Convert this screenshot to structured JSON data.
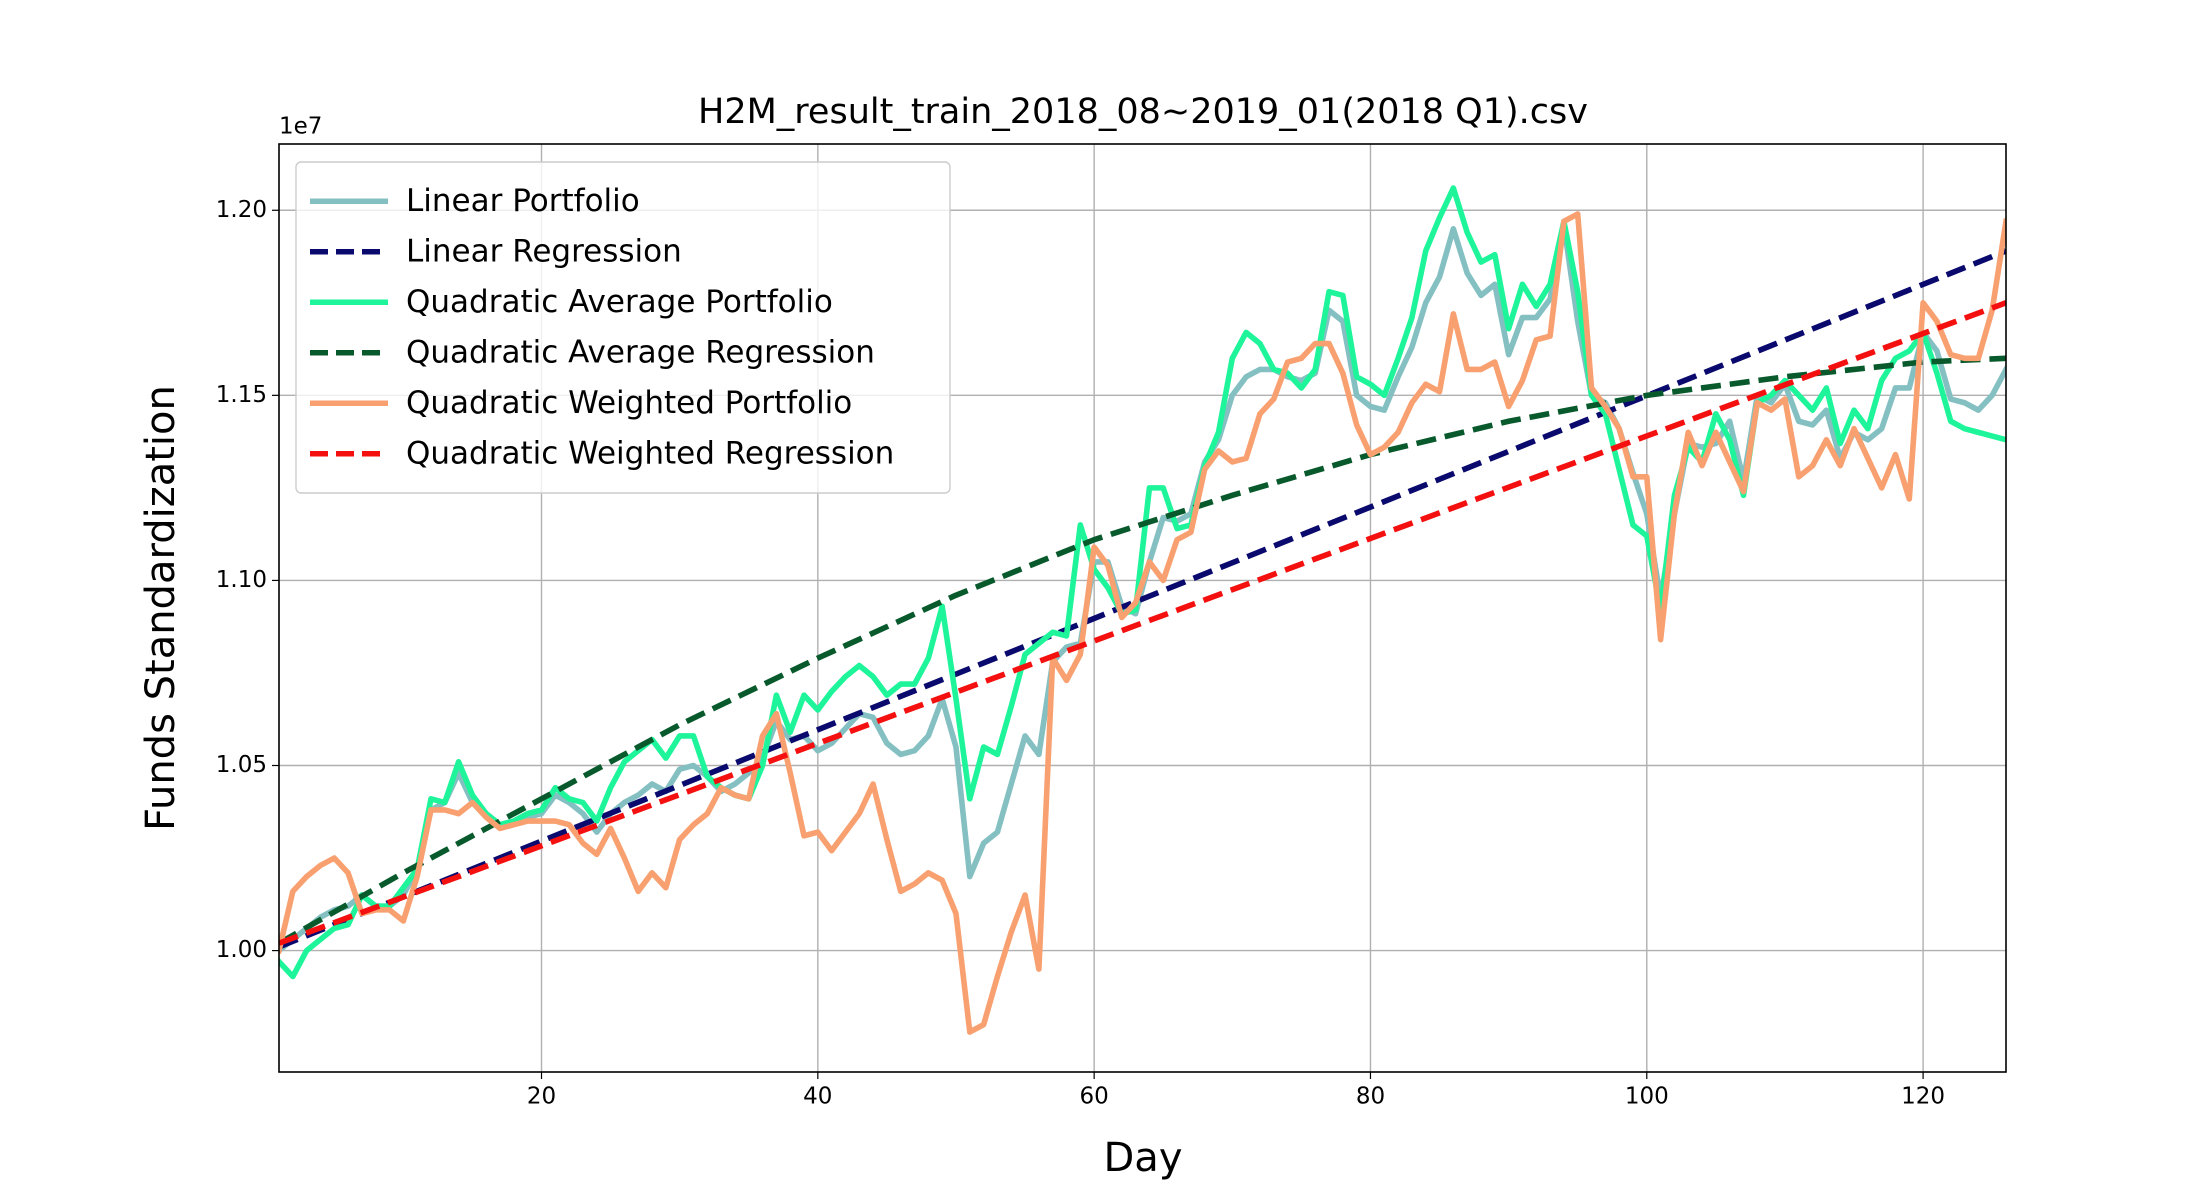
{
  "chart_data": {
    "type": "line",
    "title": "H2M_result_train_2018_08~2019_01(2018 Q1).csv",
    "xlabel": "Day",
    "ylabel": "Funds Standardization",
    "offset_text": "1e7",
    "grid": true,
    "legend": "upper left",
    "xlim": [
      1,
      126
    ],
    "ylim": [
      0.9672,
      1.2179
    ],
    "xticks": [
      20,
      40,
      60,
      80,
      100,
      120
    ],
    "yticks": [
      {
        "value": 1,
        "label": "1.00"
      },
      1.05,
      {
        "value": 1.1,
        "label": "1.10"
      },
      1.15,
      {
        "value": 1.2,
        "label": "1.20"
      }
    ],
    "x": [
      1,
      2,
      3,
      4,
      5,
      6,
      7,
      8,
      9,
      10,
      11,
      12,
      13,
      14,
      15,
      16,
      17,
      18,
      19,
      20,
      21,
      22,
      23,
      24,
      25,
      26,
      27,
      28,
      29,
      30,
      31,
      32,
      33,
      34,
      35,
      36,
      37,
      38,
      39,
      40,
      41,
      42,
      43,
      44,
      45,
      46,
      47,
      48,
      49,
      50,
      51,
      52,
      53,
      54,
      55,
      56,
      57,
      58,
      59,
      60,
      61,
      62,
      63,
      64,
      65,
      66,
      67,
      68,
      69,
      70,
      71,
      72,
      73,
      74,
      75,
      76,
      77,
      78,
      79,
      80,
      81,
      82,
      83,
      84,
      85,
      86,
      87,
      88,
      89,
      90,
      91,
      92,
      93,
      94,
      95,
      96,
      97,
      98,
      99,
      100,
      101,
      102,
      103,
      104,
      105,
      106,
      107,
      108,
      109,
      110,
      111,
      112,
      113,
      114,
      115,
      116,
      117,
      118,
      119,
      120,
      121,
      122,
      123,
      124,
      125,
      126
    ],
    "series": [
      {
        "name": "Linear Portfolio",
        "color": "#84c0c2",
        "linestyle": "solid",
        "values": [
          1.0,
          1.003,
          1.006,
          1.009,
          1.011,
          1.012,
          1.015,
          1.012,
          1.012,
          1.015,
          1.022,
          1.038,
          1.04,
          1.048,
          1.04,
          1.037,
          1.034,
          1.035,
          1.036,
          1.037,
          1.042,
          1.04,
          1.037,
          1.032,
          1.037,
          1.04,
          1.042,
          1.045,
          1.043,
          1.049,
          1.05,
          1.047,
          1.043,
          1.045,
          1.048,
          1.052,
          1.062,
          1.057,
          1.058,
          1.054,
          1.056,
          1.06,
          1.064,
          1.063,
          1.056,
          1.053,
          1.054,
          1.058,
          1.068,
          1.055,
          1.02,
          1.029,
          1.032,
          1.045,
          1.058,
          1.053,
          1.078,
          1.082,
          1.083,
          1.105,
          1.105,
          1.093,
          1.091,
          1.105,
          1.117,
          1.116,
          1.118,
          1.132,
          1.138,
          1.15,
          1.155,
          1.157,
          1.157,
          1.155,
          1.154,
          1.156,
          1.173,
          1.17,
          1.15,
          1.147,
          1.146,
          1.155,
          1.163,
          1.175,
          1.182,
          1.195,
          1.183,
          1.177,
          1.18,
          1.161,
          1.171,
          1.171,
          1.176,
          1.196,
          1.17,
          1.15,
          1.148,
          1.141,
          1.129,
          1.118,
          1.095,
          1.118,
          1.137,
          1.136,
          1.137,
          1.143,
          1.127,
          1.15,
          1.148,
          1.153,
          1.143,
          1.142,
          1.146,
          1.133,
          1.14,
          1.138,
          1.141,
          1.152,
          1.152,
          1.167,
          1.162,
          1.149,
          1.148,
          1.146,
          1.15,
          1.157
        ]
      },
      {
        "name": "Linear Regression",
        "color": "#0a0a6e",
        "linestyle": "dashed",
        "x": [
          1,
          126
        ],
        "values": [
          1.001,
          1.189
        ]
      },
      {
        "name": "Quadratic Average Portfolio",
        "color": "#1ef59a",
        "linestyle": "solid",
        "values": [
          0.997,
          0.993,
          1.0,
          1.003,
          1.006,
          1.007,
          1.015,
          1.012,
          1.012,
          1.017,
          1.022,
          1.041,
          1.04,
          1.051,
          1.042,
          1.037,
          1.034,
          1.035,
          1.037,
          1.038,
          1.044,
          1.041,
          1.04,
          1.035,
          1.044,
          1.051,
          1.054,
          1.057,
          1.052,
          1.058,
          1.058,
          1.047,
          1.044,
          1.042,
          1.041,
          1.05,
          1.069,
          1.059,
          1.069,
          1.065,
          1.07,
          1.074,
          1.077,
          1.074,
          1.069,
          1.072,
          1.072,
          1.079,
          1.093,
          1.068,
          1.041,
          1.055,
          1.053,
          1.066,
          1.08,
          1.083,
          1.086,
          1.085,
          1.115,
          1.103,
          1.098,
          1.091,
          1.092,
          1.125,
          1.125,
          1.114,
          1.115,
          1.131,
          1.14,
          1.16,
          1.167,
          1.164,
          1.157,
          1.156,
          1.152,
          1.157,
          1.178,
          1.177,
          1.155,
          1.153,
          1.15,
          1.16,
          1.171,
          1.189,
          1.198,
          1.206,
          1.194,
          1.186,
          1.188,
          1.168,
          1.18,
          1.174,
          1.18,
          1.197,
          1.178,
          1.15,
          1.145,
          1.13,
          1.115,
          1.112,
          1.092,
          1.123,
          1.136,
          1.132,
          1.145,
          1.138,
          1.123,
          1.148,
          1.15,
          1.154,
          1.15,
          1.146,
          1.152,
          1.137,
          1.146,
          1.141,
          1.154,
          1.16,
          1.162,
          1.167,
          1.156,
          1.143,
          1.141,
          1.14,
          1.139,
          1.138
        ]
      },
      {
        "name": "Quadratic Average Regression",
        "color": "#085a2c",
        "linestyle": "dashed",
        "x": [
          1,
          10,
          20,
          30,
          40,
          50,
          60,
          70,
          80,
          90,
          100,
          110,
          120,
          126
        ],
        "values": [
          1.002,
          1.021,
          1.041,
          1.061,
          1.079,
          1.096,
          1.111,
          1.123,
          1.134,
          1.143,
          1.15,
          1.155,
          1.159,
          1.16
        ]
      },
      {
        "name": "Quadratic Weighted Portfolio",
        "color": "#f8a070",
        "linestyle": "solid",
        "values": [
          1.0,
          1.016,
          1.02,
          1.023,
          1.025,
          1.021,
          1.01,
          1.011,
          1.011,
          1.008,
          1.02,
          1.038,
          1.038,
          1.037,
          1.04,
          1.036,
          1.033,
          1.034,
          1.035,
          1.035,
          1.035,
          1.034,
          1.029,
          1.026,
          1.033,
          1.025,
          1.016,
          1.021,
          1.017,
          1.03,
          1.034,
          1.037,
          1.044,
          1.042,
          1.041,
          1.058,
          1.064,
          1.048,
          1.031,
          1.032,
          1.027,
          1.032,
          1.037,
          1.045,
          1.03,
          1.016,
          1.018,
          1.021,
          1.019,
          1.01,
          0.978,
          0.98,
          0.993,
          1.005,
          1.015,
          0.995,
          1.079,
          1.073,
          1.08,
          1.109,
          1.104,
          1.09,
          1.094,
          1.105,
          1.1,
          1.111,
          1.113,
          1.13,
          1.135,
          1.132,
          1.133,
          1.145,
          1.149,
          1.159,
          1.16,
          1.164,
          1.164,
          1.156,
          1.142,
          1.134,
          1.136,
          1.14,
          1.148,
          1.153,
          1.151,
          1.172,
          1.157,
          1.157,
          1.159,
          1.147,
          1.154,
          1.165,
          1.166,
          1.197,
          1.199,
          1.152,
          1.147,
          1.141,
          1.128,
          1.128,
          1.084,
          1.118,
          1.14,
          1.131,
          1.14,
          1.132,
          1.124,
          1.148,
          1.146,
          1.149,
          1.128,
          1.131,
          1.138,
          1.131,
          1.141,
          1.133,
          1.125,
          1.134,
          1.122,
          1.175,
          1.17,
          1.161,
          1.16,
          1.16,
          1.173,
          1.197
        ]
      },
      {
        "name": "Quadratic Weighted Regression",
        "color": "#f51010",
        "linestyle": "dashed",
        "x": [
          1,
          126
        ],
        "values": [
          1.002,
          1.175
        ]
      }
    ]
  }
}
